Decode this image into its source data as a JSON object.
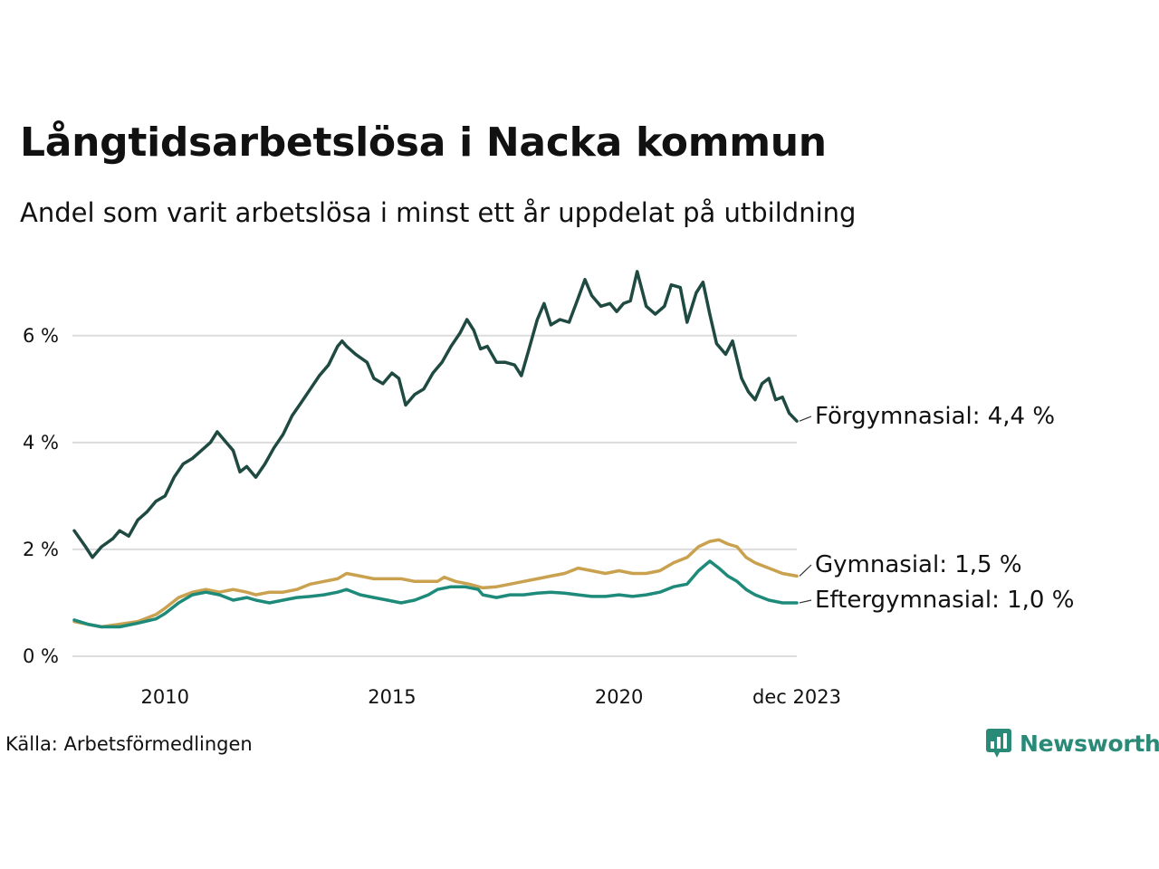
{
  "title": "Långtidsarbetslösa i Nacka kommun",
  "subtitle": "Andel som varit arbetslösa i minst ett år uppdelat på utbildning",
  "source": "Källa: Arbetsförmedlingen",
  "brand": {
    "name": "Newsworthy",
    "icon": "newsworthy-logo-icon",
    "color": "#2a8a78"
  },
  "chart_data": {
    "type": "line",
    "title": "Långtidsarbetslösa i Nacka kommun",
    "subtitle": "Andel som varit arbetslösa i minst ett år uppdelat på utbildning",
    "xlabel": "",
    "ylabel": "",
    "x_range": [
      2008.0,
      2023.917
    ],
    "ylim": [
      0,
      7.3
    ],
    "y_ticks": [
      {
        "value": 0,
        "label": "0 %"
      },
      {
        "value": 2,
        "label": "2 %"
      },
      {
        "value": 4,
        "label": "4 %"
      },
      {
        "value": 6,
        "label": "6 %"
      }
    ],
    "x_ticks": [
      {
        "value": 2010,
        "label": "2010"
      },
      {
        "value": 2015,
        "label": "2015"
      },
      {
        "value": 2020,
        "label": "2020"
      },
      {
        "value": 2023.917,
        "label": "dec 2023"
      }
    ],
    "grid": true,
    "series": [
      {
        "name": "Förgymnasial",
        "label": "Förgymnasial: 4,4 %",
        "color": "#1f4a42",
        "points": [
          [
            2008.0,
            2.35
          ],
          [
            2008.25,
            2.05
          ],
          [
            2008.4,
            1.85
          ],
          [
            2008.6,
            2.05
          ],
          [
            2008.85,
            2.2
          ],
          [
            2009.0,
            2.35
          ],
          [
            2009.2,
            2.25
          ],
          [
            2009.4,
            2.55
          ],
          [
            2009.6,
            2.7
          ],
          [
            2009.8,
            2.9
          ],
          [
            2010.0,
            3.0
          ],
          [
            2010.2,
            3.35
          ],
          [
            2010.4,
            3.6
          ],
          [
            2010.6,
            3.7
          ],
          [
            2010.8,
            3.85
          ],
          [
            2011.0,
            4.0
          ],
          [
            2011.15,
            4.2
          ],
          [
            2011.3,
            4.05
          ],
          [
            2011.5,
            3.85
          ],
          [
            2011.65,
            3.45
          ],
          [
            2011.8,
            3.55
          ],
          [
            2012.0,
            3.35
          ],
          [
            2012.2,
            3.6
          ],
          [
            2012.4,
            3.9
          ],
          [
            2012.6,
            4.15
          ],
          [
            2012.8,
            4.5
          ],
          [
            2013.0,
            4.75
          ],
          [
            2013.2,
            5.0
          ],
          [
            2013.4,
            5.25
          ],
          [
            2013.6,
            5.45
          ],
          [
            2013.8,
            5.8
          ],
          [
            2013.9,
            5.9
          ],
          [
            2014.0,
            5.8
          ],
          [
            2014.2,
            5.65
          ],
          [
            2014.45,
            5.5
          ],
          [
            2014.6,
            5.2
          ],
          [
            2014.8,
            5.1
          ],
          [
            2015.0,
            5.3
          ],
          [
            2015.15,
            5.2
          ],
          [
            2015.3,
            4.7
          ],
          [
            2015.5,
            4.9
          ],
          [
            2015.7,
            5.0
          ],
          [
            2015.9,
            5.3
          ],
          [
            2016.1,
            5.5
          ],
          [
            2016.3,
            5.8
          ],
          [
            2016.5,
            6.05
          ],
          [
            2016.65,
            6.3
          ],
          [
            2016.8,
            6.1
          ],
          [
            2016.95,
            5.75
          ],
          [
            2017.1,
            5.8
          ],
          [
            2017.3,
            5.5
          ],
          [
            2017.5,
            5.5
          ],
          [
            2017.7,
            5.45
          ],
          [
            2017.85,
            5.25
          ],
          [
            2018.0,
            5.7
          ],
          [
            2018.2,
            6.3
          ],
          [
            2018.35,
            6.6
          ],
          [
            2018.5,
            6.2
          ],
          [
            2018.7,
            6.3
          ],
          [
            2018.9,
            6.25
          ],
          [
            2019.1,
            6.7
          ],
          [
            2019.25,
            7.05
          ],
          [
            2019.4,
            6.75
          ],
          [
            2019.6,
            6.55
          ],
          [
            2019.8,
            6.6
          ],
          [
            2019.95,
            6.45
          ],
          [
            2020.1,
            6.6
          ],
          [
            2020.25,
            6.65
          ],
          [
            2020.4,
            7.2
          ],
          [
            2020.6,
            6.55
          ],
          [
            2020.8,
            6.4
          ],
          [
            2021.0,
            6.55
          ],
          [
            2021.15,
            6.95
          ],
          [
            2021.35,
            6.9
          ],
          [
            2021.5,
            6.25
          ],
          [
            2021.7,
            6.8
          ],
          [
            2021.85,
            7.0
          ],
          [
            2022.0,
            6.4
          ],
          [
            2022.15,
            5.85
          ],
          [
            2022.35,
            5.65
          ],
          [
            2022.5,
            5.9
          ],
          [
            2022.7,
            5.2
          ],
          [
            2022.85,
            4.95
          ],
          [
            2023.0,
            4.8
          ],
          [
            2023.15,
            5.1
          ],
          [
            2023.3,
            5.2
          ],
          [
            2023.45,
            4.8
          ],
          [
            2023.6,
            4.85
          ],
          [
            2023.75,
            4.55
          ],
          [
            2023.917,
            4.4
          ]
        ]
      },
      {
        "name": "Gymnasial",
        "label": "Gymnasial: 1,5 %",
        "color": "#c9a14f",
        "points": [
          [
            2008.0,
            0.65
          ],
          [
            2008.3,
            0.6
          ],
          [
            2008.6,
            0.55
          ],
          [
            2009.0,
            0.6
          ],
          [
            2009.4,
            0.65
          ],
          [
            2009.8,
            0.78
          ],
          [
            2010.0,
            0.9
          ],
          [
            2010.3,
            1.1
          ],
          [
            2010.6,
            1.2
          ],
          [
            2010.9,
            1.25
          ],
          [
            2011.2,
            1.2
          ],
          [
            2011.5,
            1.25
          ],
          [
            2011.8,
            1.2
          ],
          [
            2012.0,
            1.15
          ],
          [
            2012.3,
            1.2
          ],
          [
            2012.6,
            1.2
          ],
          [
            2012.9,
            1.25
          ],
          [
            2013.2,
            1.35
          ],
          [
            2013.5,
            1.4
          ],
          [
            2013.8,
            1.45
          ],
          [
            2014.0,
            1.55
          ],
          [
            2014.3,
            1.5
          ],
          [
            2014.6,
            1.45
          ],
          [
            2014.9,
            1.45
          ],
          [
            2015.2,
            1.45
          ],
          [
            2015.5,
            1.4
          ],
          [
            2015.8,
            1.4
          ],
          [
            2016.0,
            1.4
          ],
          [
            2016.15,
            1.48
          ],
          [
            2016.4,
            1.4
          ],
          [
            2016.7,
            1.35
          ],
          [
            2017.0,
            1.28
          ],
          [
            2017.3,
            1.3
          ],
          [
            2017.6,
            1.35
          ],
          [
            2017.9,
            1.4
          ],
          [
            2018.2,
            1.45
          ],
          [
            2018.5,
            1.5
          ],
          [
            2018.8,
            1.55
          ],
          [
            2019.1,
            1.65
          ],
          [
            2019.4,
            1.6
          ],
          [
            2019.7,
            1.55
          ],
          [
            2020.0,
            1.6
          ],
          [
            2020.3,
            1.55
          ],
          [
            2020.6,
            1.55
          ],
          [
            2020.9,
            1.6
          ],
          [
            2021.2,
            1.75
          ],
          [
            2021.5,
            1.85
          ],
          [
            2021.75,
            2.05
          ],
          [
            2022.0,
            2.15
          ],
          [
            2022.2,
            2.18
          ],
          [
            2022.4,
            2.1
          ],
          [
            2022.6,
            2.05
          ],
          [
            2022.8,
            1.85
          ],
          [
            2023.0,
            1.75
          ],
          [
            2023.3,
            1.65
          ],
          [
            2023.6,
            1.55
          ],
          [
            2023.917,
            1.5
          ]
        ]
      },
      {
        "name": "Eftergymnasial",
        "label": "Eftergymnasial: 1,0 %",
        "color": "#1e8a7a",
        "points": [
          [
            2008.0,
            0.68
          ],
          [
            2008.3,
            0.6
          ],
          [
            2008.6,
            0.55
          ],
          [
            2009.0,
            0.55
          ],
          [
            2009.4,
            0.62
          ],
          [
            2009.8,
            0.7
          ],
          [
            2010.0,
            0.8
          ],
          [
            2010.3,
            1.0
          ],
          [
            2010.6,
            1.15
          ],
          [
            2010.9,
            1.2
          ],
          [
            2011.2,
            1.15
          ],
          [
            2011.5,
            1.05
          ],
          [
            2011.8,
            1.1
          ],
          [
            2012.0,
            1.05
          ],
          [
            2012.3,
            1.0
          ],
          [
            2012.6,
            1.05
          ],
          [
            2012.9,
            1.1
          ],
          [
            2013.2,
            1.12
          ],
          [
            2013.5,
            1.15
          ],
          [
            2013.8,
            1.2
          ],
          [
            2014.0,
            1.25
          ],
          [
            2014.3,
            1.15
          ],
          [
            2014.6,
            1.1
          ],
          [
            2014.9,
            1.05
          ],
          [
            2015.2,
            1.0
          ],
          [
            2015.5,
            1.05
          ],
          [
            2015.8,
            1.15
          ],
          [
            2016.0,
            1.25
          ],
          [
            2016.3,
            1.3
          ],
          [
            2016.6,
            1.3
          ],
          [
            2016.9,
            1.25
          ],
          [
            2017.0,
            1.15
          ],
          [
            2017.3,
            1.1
          ],
          [
            2017.6,
            1.15
          ],
          [
            2017.9,
            1.15
          ],
          [
            2018.2,
            1.18
          ],
          [
            2018.5,
            1.2
          ],
          [
            2018.8,
            1.18
          ],
          [
            2019.1,
            1.15
          ],
          [
            2019.4,
            1.12
          ],
          [
            2019.7,
            1.12
          ],
          [
            2020.0,
            1.15
          ],
          [
            2020.3,
            1.12
          ],
          [
            2020.6,
            1.15
          ],
          [
            2020.9,
            1.2
          ],
          [
            2021.2,
            1.3
          ],
          [
            2021.5,
            1.35
          ],
          [
            2021.75,
            1.6
          ],
          [
            2022.0,
            1.78
          ],
          [
            2022.2,
            1.65
          ],
          [
            2022.4,
            1.5
          ],
          [
            2022.6,
            1.4
          ],
          [
            2022.8,
            1.25
          ],
          [
            2023.0,
            1.15
          ],
          [
            2023.3,
            1.05
          ],
          [
            2023.6,
            1.0
          ],
          [
            2023.917,
            1.0
          ]
        ]
      }
    ]
  }
}
